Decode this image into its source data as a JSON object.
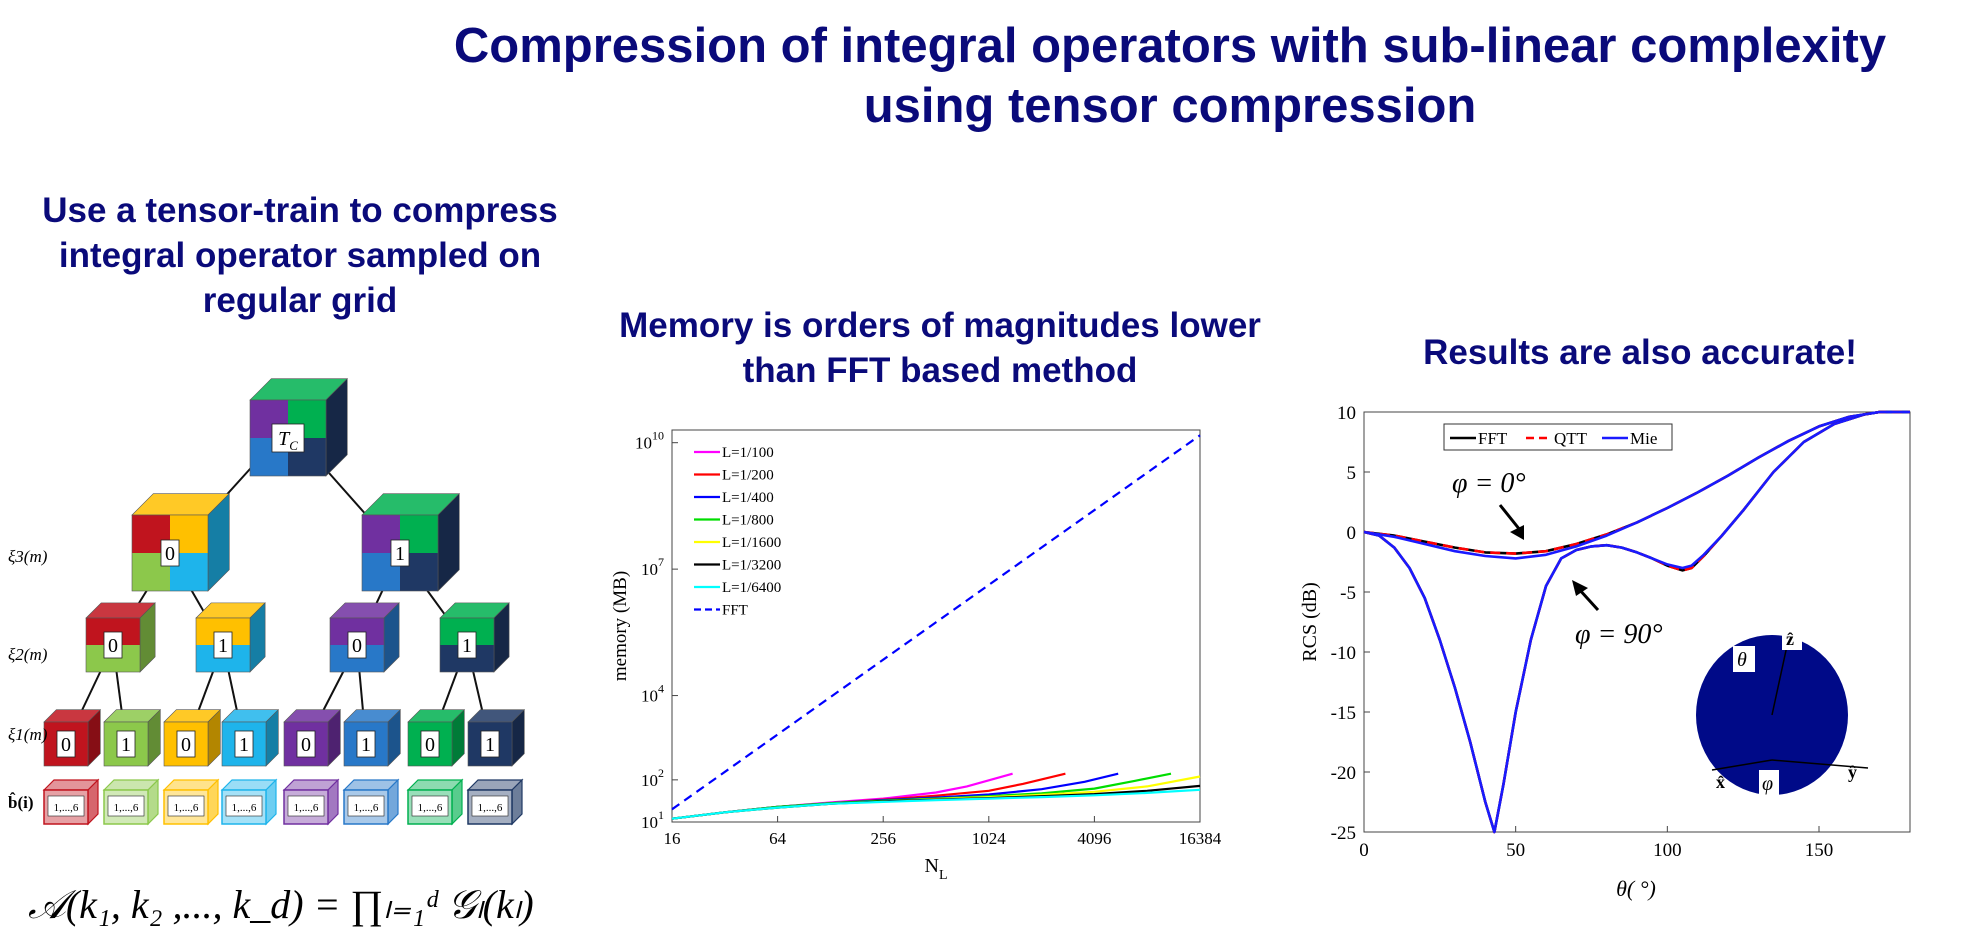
{
  "title": "Compression of integral operators with sub-linear complexity using tensor compression",
  "captions": {
    "left": "Use a tensor-train to compress integral operator sampled on regular grid",
    "middle": "Memory is orders of magnitudes lower than FFT based method",
    "right": "Results are also accurate!"
  },
  "tree": {
    "root_label": "T",
    "root_sub": "C",
    "level_labels": [
      "ξ3(m)",
      "ξ2(m)",
      "ξ1(m)",
      "b̂(i)"
    ],
    "node_labels": [
      "0",
      "1"
    ],
    "leaf_range": "1,...,6",
    "formula": "𝒜(k₁, k₂ ,..., k_d) = ∏ₗ₌₁ᵈ 𝒢ₗ(kₗ)",
    "colors": {
      "red": "#c0141e",
      "lightgreen": "#8cc84b",
      "gold": "#ffc000",
      "skyblue": "#1eb4eb",
      "purple": "#7030a0",
      "blue": "#2878c8",
      "green": "#00b050",
      "navy": "#1f3864"
    }
  },
  "chart_data": [
    {
      "type": "line",
      "xlabel": "N",
      "xlabel_sub": "L",
      "ylabel": "memory (MB)",
      "x_scale": "log2",
      "y_scale": "log",
      "xlim": [
        16,
        16384
      ],
      "ylim": [
        10,
        20000000000
      ],
      "x_ticks": [
        16,
        64,
        256,
        1024,
        4096,
        16384
      ],
      "x_tick_labels": [
        "16",
        "64",
        "256",
        "1024",
        "4096",
        "16384"
      ],
      "y_ticks": [
        10,
        100,
        10000,
        10000000,
        10000000000
      ],
      "y_tick_labels": [
        "10",
        "10",
        "10",
        "10",
        "10"
      ],
      "y_tick_exponents": [
        "1",
        "2",
        "4",
        "7",
        "10"
      ],
      "legend_position": "top-left",
      "series": [
        {
          "name": "L=1/100",
          "color": "#ff00ff",
          "dash": false,
          "x": [
            16,
            32,
            64,
            128,
            256,
            512,
            768,
            1400
          ],
          "y": [
            12,
            17,
            23,
            29,
            36,
            50,
            70,
            140
          ]
        },
        {
          "name": "L=1/200",
          "color": "#ff0000",
          "dash": false,
          "x": [
            16,
            32,
            64,
            128,
            256,
            512,
            1024,
            1600,
            2800
          ],
          "y": [
            12,
            17,
            23,
            28,
            34,
            42,
            55,
            80,
            140
          ]
        },
        {
          "name": "L=1/400",
          "color": "#0000ff",
          "dash": false,
          "x": [
            16,
            32,
            64,
            128,
            256,
            512,
            1024,
            2048,
            3600,
            5600
          ],
          "y": [
            12,
            17,
            23,
            28,
            33,
            38,
            45,
            60,
            90,
            140
          ]
        },
        {
          "name": "L=1/800",
          "color": "#00dd00",
          "dash": false,
          "x": [
            16,
            32,
            64,
            128,
            256,
            512,
            1024,
            2048,
            4096,
            7000,
            11200
          ],
          "y": [
            12,
            17,
            23,
            28,
            32,
            36,
            41,
            48,
            62,
            95,
            140
          ]
        },
        {
          "name": "L=1/1600",
          "color": "#ffff00",
          "dash": false,
          "x": [
            16,
            32,
            64,
            128,
            256,
            512,
            1024,
            2048,
            4096,
            8192,
            16384
          ],
          "y": [
            12,
            17,
            22,
            27,
            31,
            35,
            39,
            44,
            52,
            70,
            120
          ]
        },
        {
          "name": "L=1/3200",
          "color": "#000000",
          "dash": false,
          "x": [
            16,
            32,
            64,
            128,
            256,
            512,
            1024,
            2048,
            4096,
            8192,
            16384
          ],
          "y": [
            12,
            17,
            22,
            27,
            31,
            34,
            37,
            41,
            46,
            55,
            72
          ]
        },
        {
          "name": "L=1/6400",
          "color": "#00ffff",
          "dash": false,
          "x": [
            16,
            32,
            64,
            128,
            256,
            512,
            1024,
            2048,
            4096,
            8192,
            16384
          ],
          "y": [
            12,
            17,
            22,
            27,
            30,
            33,
            36,
            39,
            43,
            49,
            58
          ]
        },
        {
          "name": "FFT",
          "color": "#0000ff",
          "dash": true,
          "x": [
            16,
            16384
          ],
          "y": [
            20,
            15000000000
          ]
        }
      ]
    },
    {
      "type": "line",
      "xlabel": "θ( °)",
      "ylabel": "RCS (dB)",
      "xlim": [
        0,
        180
      ],
      "ylim": [
        -25,
        10
      ],
      "x_ticks": [
        0,
        50,
        100,
        150
      ],
      "y_ticks": [
        10,
        5,
        0,
        -5,
        -10,
        -15,
        -20,
        -25
      ],
      "legend_position": "top-left",
      "annotations": [
        "φ = 0°",
        "φ = 90°"
      ],
      "inset_labels": {
        "theta": "θ",
        "phi": "φ",
        "x": "x̂",
        "y": "ŷ",
        "z": "ẑ"
      },
      "series": [
        {
          "name": "FFT",
          "color": "#000000",
          "dash": false,
          "x": [
            0,
            5,
            10,
            15,
            20,
            25,
            30,
            35,
            40,
            43,
            46,
            50,
            55,
            60,
            65,
            70,
            75,
            80,
            85,
            90,
            95,
            100,
            105,
            108,
            112,
            118,
            125,
            135,
            145,
            155,
            165,
            170,
            175,
            180
          ],
          "y": [
            0,
            -0.3,
            -1.3,
            -3,
            -5.5,
            -9,
            -13,
            -17.5,
            -22.5,
            -25,
            -21,
            -15,
            -9,
            -4.5,
            -2.2,
            -1.5,
            -1.2,
            -1.1,
            -1.3,
            -1.7,
            -2.2,
            -2.8,
            -3.2,
            -3.0,
            -2.0,
            -0.3,
            1.8,
            5.0,
            7.5,
            9.0,
            9.8,
            10,
            10,
            10
          ]
        },
        {
          "name": "QTT",
          "color": "#ff0000",
          "dash": true,
          "x": [
            0,
            5,
            10,
            15,
            20,
            25,
            30,
            35,
            40,
            43,
            46,
            50,
            55,
            60,
            65,
            70,
            75,
            80,
            85,
            90,
            95,
            100,
            105,
            108,
            112,
            118,
            125,
            135,
            145,
            155,
            165,
            170,
            175,
            180
          ],
          "y": [
            0,
            -0.3,
            -1.3,
            -3,
            -5.5,
            -9,
            -13,
            -17.5,
            -22.5,
            -25,
            -21,
            -15,
            -9,
            -4.5,
            -2.2,
            -1.5,
            -1.2,
            -1.1,
            -1.3,
            -1.7,
            -2.2,
            -2.8,
            -3.2,
            -3.0,
            -2.0,
            -0.3,
            1.8,
            5.0,
            7.5,
            9.0,
            9.8,
            10,
            10,
            10
          ]
        },
        {
          "name": "Mie",
          "color": "#1a1aff",
          "dash": false,
          "x": [
            0,
            5,
            10,
            15,
            20,
            25,
            30,
            35,
            40,
            43,
            46,
            50,
            55,
            60,
            65,
            70,
            75,
            80,
            85,
            90,
            95,
            100,
            105,
            108,
            112,
            118,
            125,
            135,
            145,
            155,
            165,
            170,
            175,
            180
          ],
          "y": [
            0,
            -0.3,
            -1.3,
            -3,
            -5.5,
            -9,
            -13,
            -17.5,
            -22.5,
            -25,
            -21,
            -15,
            -9,
            -4.5,
            -2.2,
            -1.5,
            -1.2,
            -1.1,
            -1.3,
            -1.7,
            -2.2,
            -2.7,
            -3.0,
            -2.8,
            -1.9,
            -0.3,
            1.8,
            5.0,
            7.5,
            9.0,
            9.8,
            10,
            10,
            10
          ]
        },
        {
          "name": "FFT-phi0",
          "color": "#000000",
          "dash": false,
          "x": [
            0,
            10,
            20,
            30,
            40,
            50,
            60,
            70,
            80,
            90,
            100,
            110,
            120,
            130,
            140,
            150,
            160,
            170,
            180
          ],
          "y": [
            0,
            -0.3,
            -0.8,
            -1.3,
            -1.7,
            -1.8,
            -1.6,
            -1.0,
            -0.2,
            0.8,
            2.0,
            3.3,
            4.7,
            6.2,
            7.6,
            8.8,
            9.6,
            10,
            10
          ]
        },
        {
          "name": "QTT-phi0",
          "color": "#ff0000",
          "dash": true,
          "x": [
            0,
            10,
            20,
            30,
            40,
            50,
            60,
            70,
            80,
            90,
            100,
            110,
            120,
            130,
            140,
            150,
            160,
            170,
            180
          ],
          "y": [
            0,
            -0.3,
            -0.8,
            -1.3,
            -1.7,
            -1.8,
            -1.6,
            -1.0,
            -0.2,
            0.8,
            2.0,
            3.3,
            4.7,
            6.2,
            7.6,
            8.8,
            9.6,
            10,
            10
          ]
        },
        {
          "name": "Mie-phi0",
          "color": "#1a1aff",
          "dash": false,
          "x": [
            0,
            10,
            20,
            30,
            40,
            50,
            60,
            70,
            80,
            90,
            100,
            110,
            120,
            130,
            140,
            150,
            160,
            170,
            180
          ],
          "y": [
            0,
            -0.4,
            -1.0,
            -1.6,
            -2.0,
            -2.2,
            -1.9,
            -1.2,
            -0.3,
            0.8,
            2.0,
            3.3,
            4.7,
            6.2,
            7.6,
            8.8,
            9.6,
            10,
            10
          ]
        }
      ],
      "legend_entries": [
        "FFT",
        "QTT",
        "Mie"
      ]
    }
  ]
}
